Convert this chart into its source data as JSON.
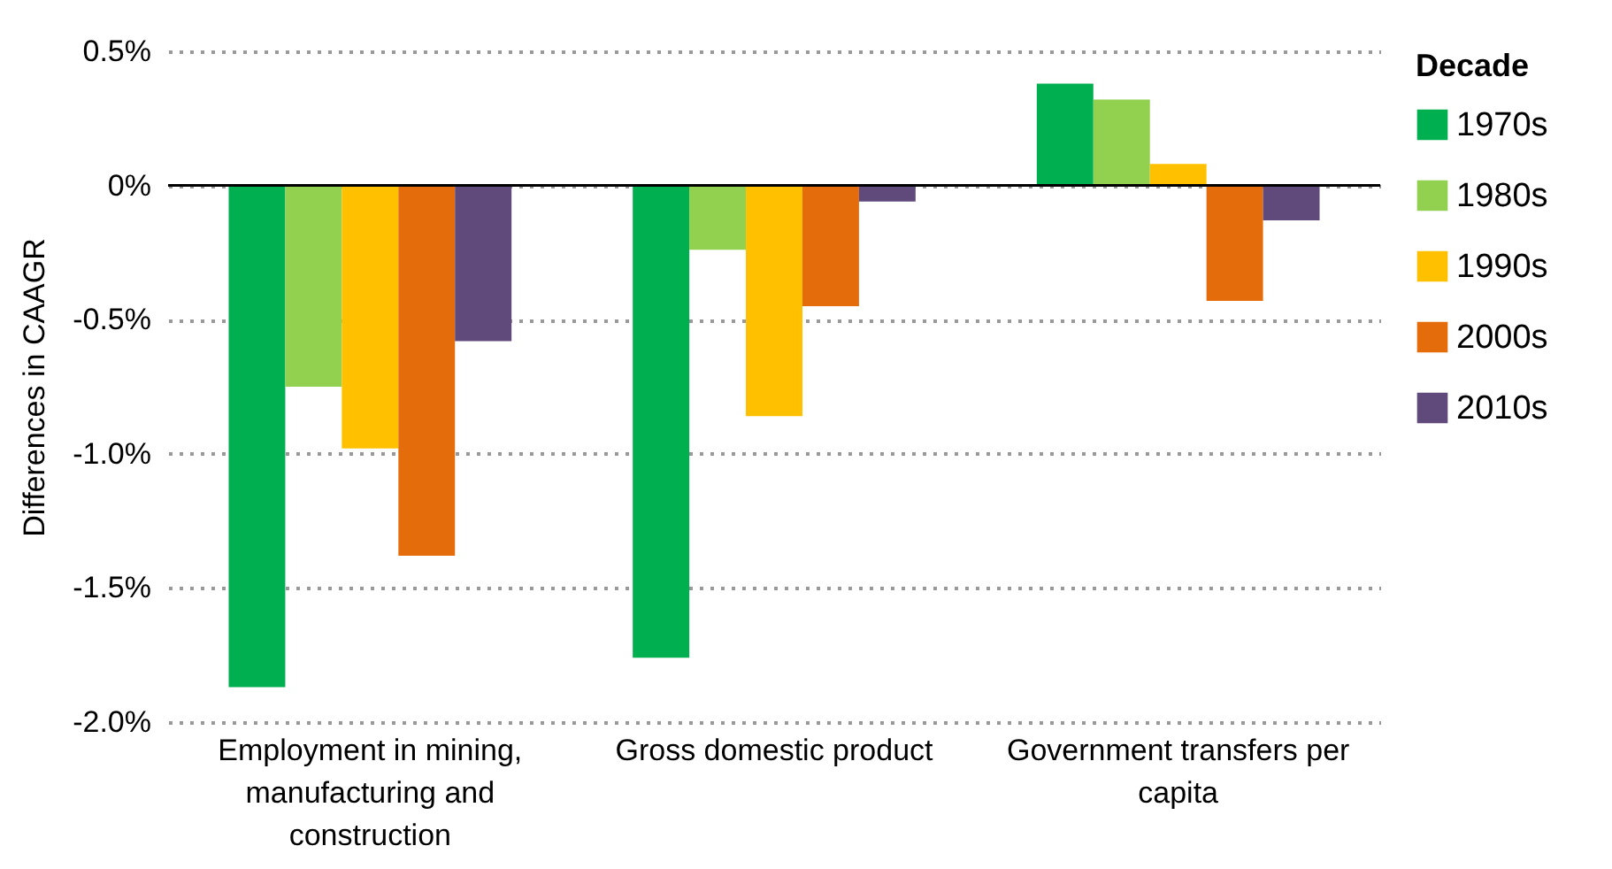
{
  "chart_data": {
    "type": "bar",
    "ylabel": "Differences in CAAGR",
    "legend_title": "Decade",
    "categories": [
      "Employment in mining, manufacturing and construction",
      "Gross domestic product",
      "Government transfers per capita"
    ],
    "series": [
      {
        "name": "1970s",
        "color": "#00b050",
        "values": [
          -1.87,
          -1.76,
          0.38
        ]
      },
      {
        "name": "1980s",
        "color": "#92d050",
        "values": [
          -0.75,
          -0.24,
          0.32
        ]
      },
      {
        "name": "1990s",
        "color": "#ffc000",
        "values": [
          -0.98,
          -0.86,
          0.08
        ]
      },
      {
        "name": "2000s",
        "color": "#e46c0a",
        "values": [
          -1.38,
          -0.45,
          -0.43
        ]
      },
      {
        "name": "2010s",
        "color": "#604a7b",
        "values": [
          -0.58,
          -0.06,
          -0.13
        ]
      }
    ],
    "ylim": [
      -2.0,
      0.5
    ],
    "yticks": [
      {
        "value": 0.5,
        "label": "0.5%"
      },
      {
        "value": 0,
        "label": "0%"
      },
      {
        "value": -0.5,
        "label": "-0.5%"
      },
      {
        "value": -1.0,
        "label": "-1.0%"
      },
      {
        "value": -1.5,
        "label": "-1.5%"
      },
      {
        "value": -2.0,
        "label": "-2.0%"
      }
    ],
    "grid": "y",
    "legend": "top right"
  }
}
